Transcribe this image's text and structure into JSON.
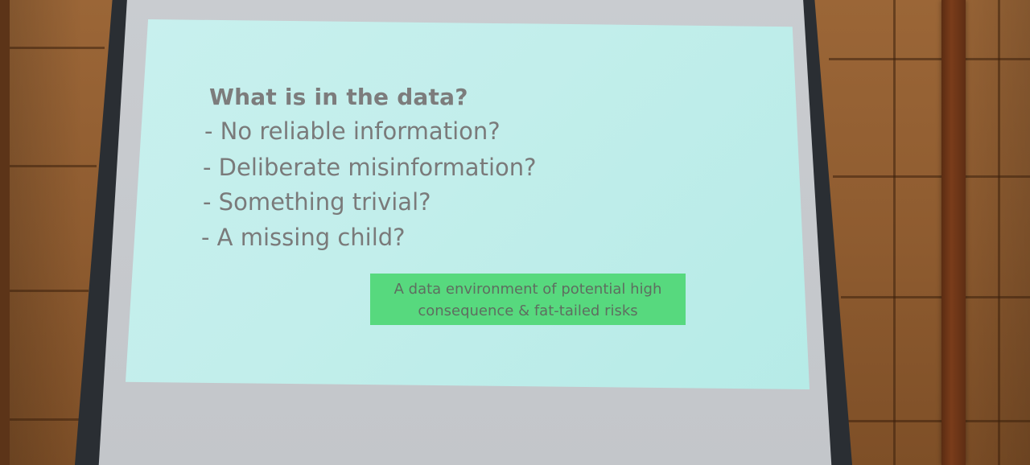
{
  "slide": {
    "heading": "What is in the data?",
    "bullets": [
      "- No reliable information?",
      "- Deliberate misinformation?",
      "- Something trivial?",
      "- A missing child?"
    ],
    "callout": {
      "line1": "A data environment of potential high",
      "line2": "consequence & fat-tailed risks"
    }
  },
  "colors": {
    "slide_background": "#c2eeeb",
    "callout_background": "#57d97e",
    "text": "#7a7a7a",
    "wall": "#8f5c30"
  }
}
